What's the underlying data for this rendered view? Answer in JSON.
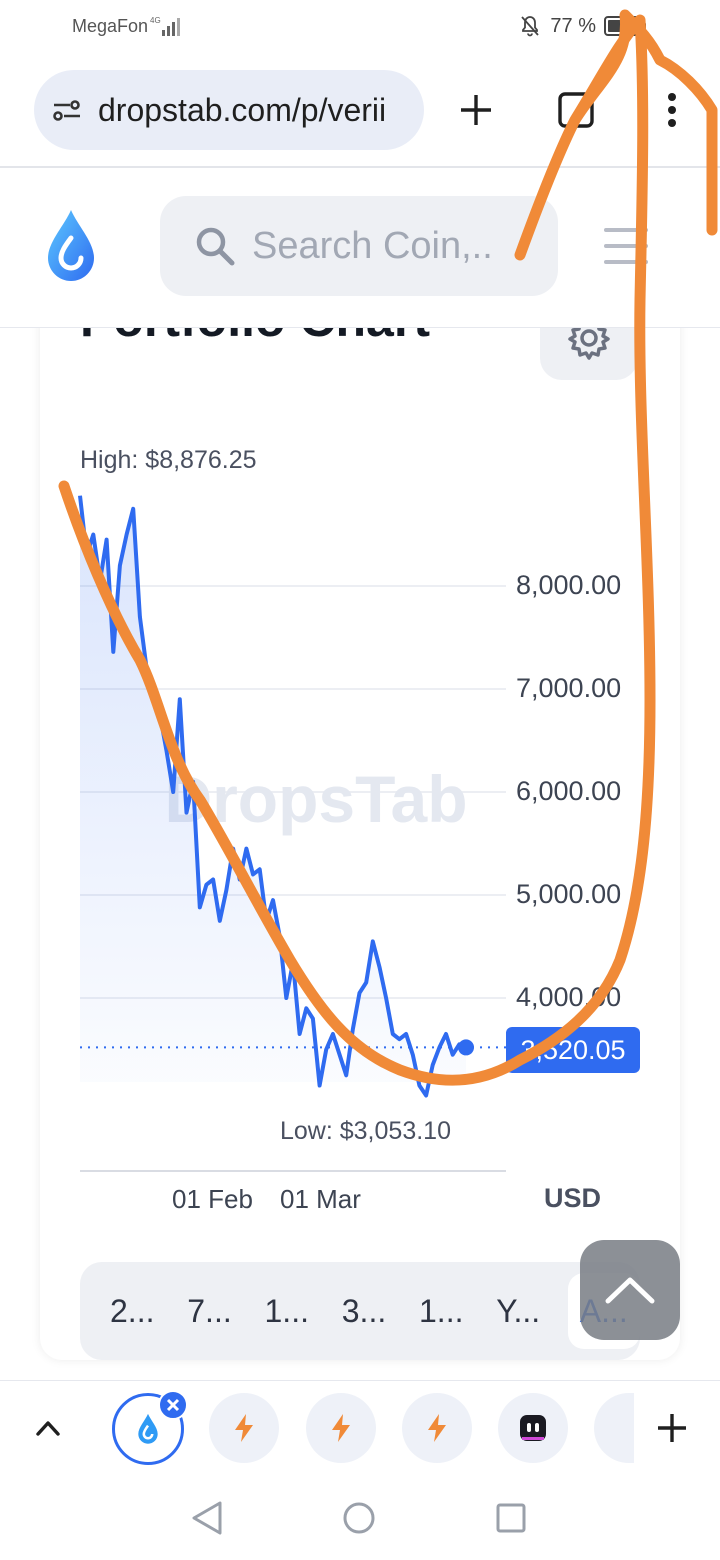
{
  "status_bar": {
    "carrier": "MegaFon",
    "network": "4G",
    "battery_text": "77 %",
    "battery_level": 0.77,
    "icons": [
      "signal-icon",
      "mute-icon",
      "battery-icon"
    ]
  },
  "browser": {
    "url": "dropstab.com/p/verii",
    "icons": [
      "site-settings-icon",
      "new-tab-icon",
      "tab-count-icon",
      "more-vert-icon"
    ]
  },
  "site": {
    "search_placeholder": "Search Coin,..",
    "icons": [
      "dropstab-logo-icon",
      "search-icon",
      "menu-icon"
    ]
  },
  "card": {
    "title": "Portfolio Chart",
    "icons": [
      "gear-icon"
    ]
  },
  "chart_data": {
    "type": "area",
    "title": "",
    "currency_label": "USD",
    "watermark": "DropsTab",
    "high_label": "High: $8,876.25",
    "low_label": "Low: $3,053.10",
    "current_price_label": "3,520.05",
    "current_value": 3520.05,
    "high_value": 8876.25,
    "low_value": 3053.1,
    "y_ticks": [
      "8,000.00",
      "7,000.00",
      "6,000.00",
      "5,000.00",
      "4,000.00"
    ],
    "y_tick_values": [
      8000,
      7000,
      6000,
      5000,
      4000
    ],
    "ylim": [
      3000,
      9000
    ],
    "x_ticks": [
      "01 Feb",
      "01 Mar"
    ],
    "grid": true,
    "series": [
      {
        "color": "#2f6bf0",
        "values": [
          8876.25,
          8300,
          8500,
          8050,
          8450,
          7360,
          8200,
          8500,
          8750,
          7700,
          7200,
          7000,
          6750,
          6400,
          6000,
          6900,
          5800,
          6100,
          4880,
          5100,
          5150,
          4750,
          5050,
          5450,
          5150,
          5450,
          5200,
          5250,
          4750,
          4950,
          4600,
          4000,
          4350,
          3650,
          3900,
          3800,
          3150,
          3500,
          3650,
          3450,
          3250,
          3700,
          4050,
          4150,
          4550,
          4300,
          4000,
          3650,
          3600,
          3650,
          3450,
          3150,
          3053.1,
          3350,
          3520,
          3650,
          3450,
          3550,
          3520.05
        ]
      }
    ]
  },
  "range_buttons": [
    "2...",
    "7...",
    "1...",
    "3...",
    "1...",
    "Y...",
    "A..."
  ],
  "range_active_index": 6,
  "tab_strip": {
    "tabs": [
      "dropstab-tab-icon",
      "bolt-tab-icon",
      "bolt-tab-icon",
      "bolt-tab-icon",
      "app-tab-icon",
      "partial-tab-icon"
    ],
    "icons": [
      "chevron-up-icon",
      "close-icon",
      "add-tab-icon"
    ]
  },
  "nav_bar": {
    "icons": [
      "back-icon",
      "home-icon",
      "recents-icon"
    ]
  },
  "annotation": {
    "color": "#f08a38"
  }
}
